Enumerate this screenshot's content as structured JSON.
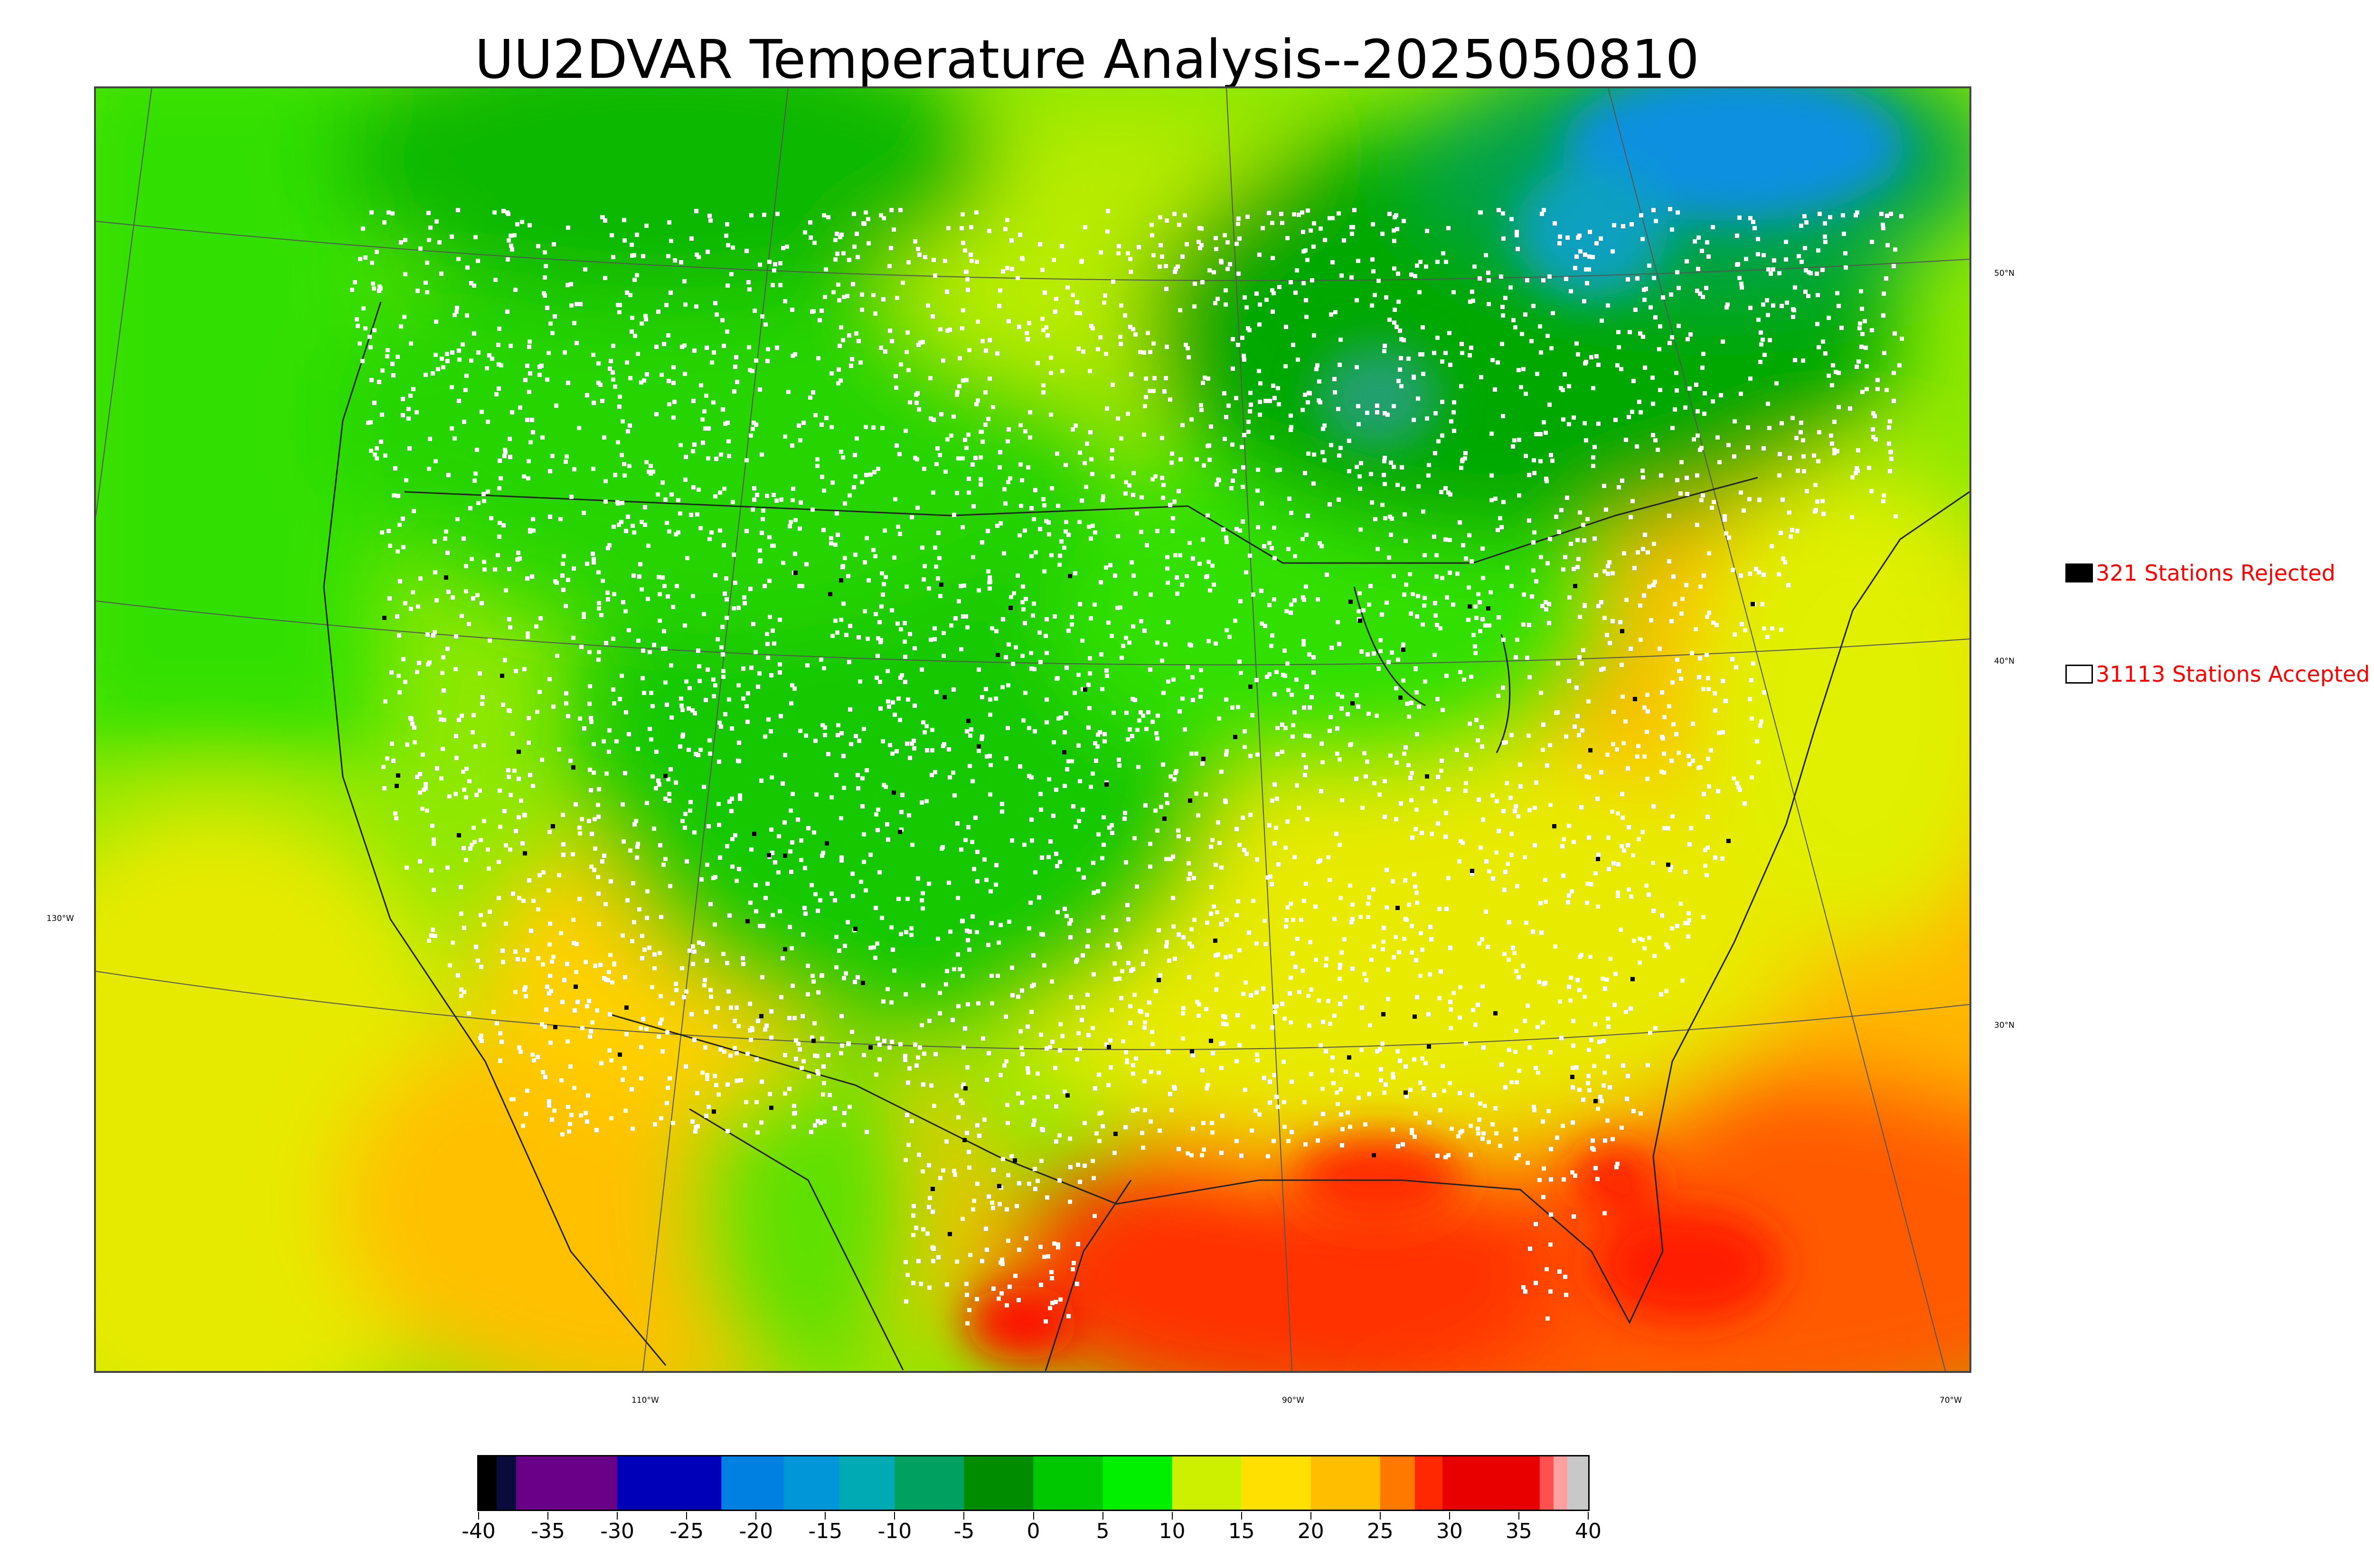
{
  "title": "UU2DVAR Temperature Analysis--2025050810",
  "graticule": {
    "lat_labels": [
      "50°N",
      "40°N",
      "30°N"
    ],
    "lon_labels": [
      "130°W",
      "110°W",
      "90°W",
      "70°W"
    ]
  },
  "legend": {
    "rejected": {
      "label": "321 Stations Rejected",
      "swatch_color": "#000000"
    },
    "accepted": {
      "label": "31113 Stations Accepted",
      "swatch_color": "#ffffff"
    }
  },
  "colorbar": {
    "range": [
      -40,
      40
    ],
    "tick_labels": [
      "-40",
      "-35",
      "-30",
      "-25",
      "-20",
      "-15",
      "-10",
      "-5",
      "0",
      "5",
      "10",
      "15",
      "20",
      "25",
      "30",
      "35",
      "40"
    ],
    "bands": [
      {
        "from": -40,
        "to": -38.7,
        "color": "#000000"
      },
      {
        "from": -38.7,
        "to": -37.3,
        "color": "#0a0a3c"
      },
      {
        "from": -37.3,
        "to": -30,
        "color": "#6a0088"
      },
      {
        "from": -30,
        "to": -22.5,
        "color": "#0000b8"
      },
      {
        "from": -22.5,
        "to": -18,
        "color": "#0080e0"
      },
      {
        "from": -18,
        "to": -14,
        "color": "#0096d8"
      },
      {
        "from": -14,
        "to": -10,
        "color": "#00aab4"
      },
      {
        "from": -10,
        "to": -5,
        "color": "#00a060"
      },
      {
        "from": -5,
        "to": 0,
        "color": "#008c00"
      },
      {
        "from": 0,
        "to": 5,
        "color": "#00c800"
      },
      {
        "from": 5,
        "to": 10,
        "color": "#00f000"
      },
      {
        "from": 10,
        "to": 15,
        "color": "#ccf000"
      },
      {
        "from": 15,
        "to": 20,
        "color": "#ffe000"
      },
      {
        "from": 20,
        "to": 25,
        "color": "#ffbe00"
      },
      {
        "from": 25,
        "to": 27.5,
        "color": "#ff7800"
      },
      {
        "from": 27.5,
        "to": 29.5,
        "color": "#ff2800"
      },
      {
        "from": 29.5,
        "to": 36.5,
        "color": "#e80000"
      },
      {
        "from": 36.5,
        "to": 37.5,
        "color": "#ff5050"
      },
      {
        "from": 37.5,
        "to": 38.5,
        "color": "#ffa0a0"
      },
      {
        "from": 38.5,
        "to": 40,
        "color": "#c8c8c8"
      }
    ]
  }
}
